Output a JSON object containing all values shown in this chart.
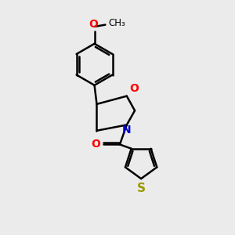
{
  "background_color": "#ebebeb",
  "bond_color": "#000000",
  "bond_width": 1.8,
  "atom_colors": {
    "O": "#ff0000",
    "N": "#0000cc",
    "S": "#999900",
    "C": "#000000"
  },
  "font_size": 10,
  "font_size_methyl": 8.5
}
